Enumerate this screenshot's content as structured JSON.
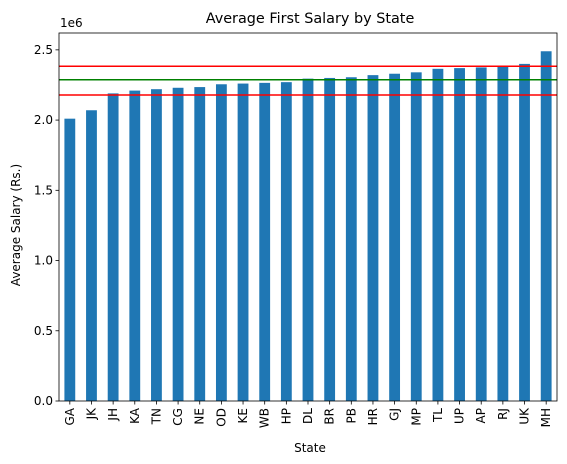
{
  "chart_data": {
    "type": "bar",
    "title": "Average First Salary by State",
    "xlabel": "State",
    "ylabel": "Average Salary (Rs.)",
    "y_offset_label": "1e6",
    "categories": [
      "GA",
      "JK",
      "JH",
      "KA",
      "TN",
      "CG",
      "NE",
      "OD",
      "KE",
      "WB",
      "HP",
      "DL",
      "BR",
      "PB",
      "HR",
      "GJ",
      "MP",
      "TL",
      "UP",
      "AP",
      "RJ",
      "UK",
      "MH"
    ],
    "values": [
      2.01,
      2.07,
      2.19,
      2.21,
      2.22,
      2.23,
      2.235,
      2.255,
      2.26,
      2.265,
      2.27,
      2.295,
      2.3,
      2.305,
      2.32,
      2.33,
      2.34,
      2.365,
      2.37,
      2.375,
      2.38,
      2.4,
      2.49
    ],
    "value_scale": 1000000,
    "bar_color": "#1f77b4",
    "ylim": [
      0,
      2.62
    ],
    "yticks": [
      0.0,
      0.5,
      1.0,
      1.5,
      2.0,
      2.5
    ],
    "ytick_labels": [
      "0.0",
      "0.5",
      "1.0",
      "1.5",
      "2.0",
      "2.5"
    ],
    "reference_lines": [
      {
        "value": 2.383,
        "color": "#ff0000"
      },
      {
        "value": 2.287,
        "color": "#008000"
      },
      {
        "value": 2.179,
        "color": "#ff0000"
      }
    ],
    "grid": false,
    "legend": "none"
  }
}
